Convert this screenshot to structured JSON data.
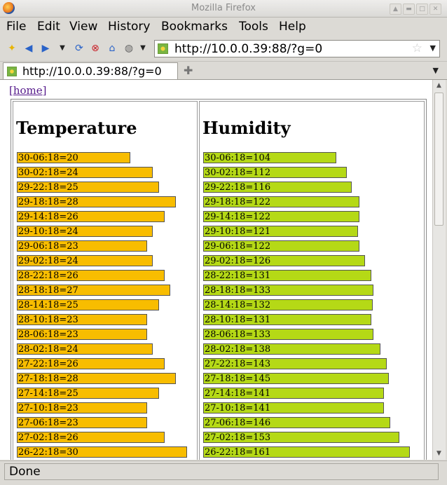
{
  "window": {
    "title": "Mozilla Firefox"
  },
  "menu": [
    "File",
    "Edit",
    "View",
    "History",
    "Bookmarks",
    "Tools",
    "Help"
  ],
  "address_bar": {
    "url": "http://10.0.0.39:88/?g=0"
  },
  "tab": {
    "title": "http://10.0.0.39:88/?g=0"
  },
  "page": {
    "home_link": "[home]",
    "temperature": {
      "heading": "Temperature",
      "items": [
        {
          "label": "30-06:18=20",
          "value": 20
        },
        {
          "label": "30-02:18=24",
          "value": 24
        },
        {
          "label": "29-22:18=25",
          "value": 25
        },
        {
          "label": "29-18:18=28",
          "value": 28
        },
        {
          "label": "29-14:18=26",
          "value": 26
        },
        {
          "label": "29-10:18=24",
          "value": 24
        },
        {
          "label": "29-06:18=23",
          "value": 23
        },
        {
          "label": "29-02:18=24",
          "value": 24
        },
        {
          "label": "28-22:18=26",
          "value": 26
        },
        {
          "label": "28-18:18=27",
          "value": 27
        },
        {
          "label": "28-14:18=25",
          "value": 25
        },
        {
          "label": "28-10:18=23",
          "value": 23
        },
        {
          "label": "28-06:18=23",
          "value": 23
        },
        {
          "label": "28-02:18=24",
          "value": 24
        },
        {
          "label": "27-22:18=26",
          "value": 26
        },
        {
          "label": "27-18:18=28",
          "value": 28
        },
        {
          "label": "27-14:18=25",
          "value": 25
        },
        {
          "label": "27-10:18=23",
          "value": 23
        },
        {
          "label": "27-06:18=23",
          "value": 23
        },
        {
          "label": "27-02:18=26",
          "value": 26
        },
        {
          "label": "26-22:18=30",
          "value": 30
        }
      ]
    },
    "humidity": {
      "heading": "Humidity",
      "items": [
        {
          "label": "30-06:18=104",
          "value": 104
        },
        {
          "label": "30-02:18=112",
          "value": 112
        },
        {
          "label": "29-22:18=116",
          "value": 116
        },
        {
          "label": "29-18:18=122",
          "value": 122
        },
        {
          "label": "29-14:18=122",
          "value": 122
        },
        {
          "label": "29-10:18=121",
          "value": 121
        },
        {
          "label": "29-06:18=122",
          "value": 122
        },
        {
          "label": "29-02:18=126",
          "value": 126
        },
        {
          "label": "28-22:18=131",
          "value": 131
        },
        {
          "label": "28-18:18=133",
          "value": 133
        },
        {
          "label": "28-14:18=132",
          "value": 132
        },
        {
          "label": "28-10:18=131",
          "value": 131
        },
        {
          "label": "28-06:18=133",
          "value": 133
        },
        {
          "label": "28-02:18=138",
          "value": 138
        },
        {
          "label": "27-22:18=143",
          "value": 143
        },
        {
          "label": "27-18:18=145",
          "value": 145
        },
        {
          "label": "27-14:18=141",
          "value": 141
        },
        {
          "label": "27-10:18=141",
          "value": 141
        },
        {
          "label": "27-06:18=146",
          "value": 146
        },
        {
          "label": "27-02:18=153",
          "value": 153
        },
        {
          "label": "26-22:18=161",
          "value": 161
        }
      ]
    }
  },
  "status": {
    "text": "Done"
  },
  "colors": {
    "temperature_bar": "#f8bd00",
    "humidity_bar": "#b5d916"
  },
  "icons": [
    "firefox-logo-icon",
    "new-bookmark-icon",
    "back-icon",
    "forward-icon",
    "history-dropdown-icon",
    "reload-icon",
    "stop-icon",
    "home-icon",
    "globe-icon",
    "star-icon",
    "new-tab-icon"
  ]
}
